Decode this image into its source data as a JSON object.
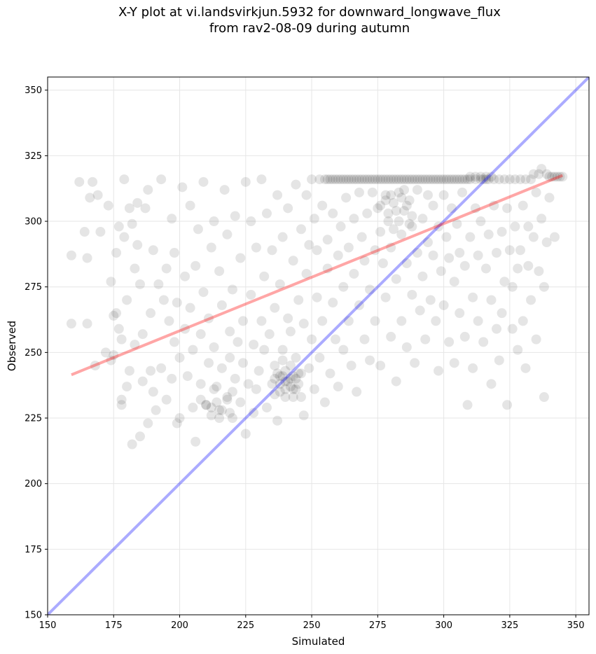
{
  "chart_data": {
    "type": "scatter",
    "title_line1": "X-Y plot at vi.landsvirkjun.5932 for downward_longwave_flux",
    "title_line2": "from rav2-08-09 during autumn",
    "xlabel": "Simulated",
    "ylabel": "Observed",
    "xlim": [
      150,
      355
    ],
    "ylim": [
      150,
      355
    ],
    "xticks": [
      150,
      175,
      200,
      225,
      250,
      275,
      300,
      325,
      350
    ],
    "yticks": [
      150,
      175,
      200,
      225,
      250,
      275,
      300,
      325,
      350
    ],
    "grid": true,
    "point_color": "#000000",
    "point_alpha": 0.1,
    "one_to_one_line": {
      "color": "#0000ff",
      "alpha": 0.33,
      "x": [
        150,
        355
      ],
      "y": [
        150,
        355
      ]
    },
    "regression_line": {
      "color": "#ff0000",
      "alpha": 0.35,
      "x": [
        159,
        345
      ],
      "y": [
        241.5,
        317.5
      ]
    },
    "points": [
      [
        159,
        261
      ],
      [
        159,
        287
      ],
      [
        162,
        315
      ],
      [
        164,
        296
      ],
      [
        165,
        286
      ],
      [
        165,
        261
      ],
      [
        166,
        309
      ],
      [
        167,
        315
      ],
      [
        168,
        245
      ],
      [
        169,
        310
      ],
      [
        170,
        296
      ],
      [
        172,
        250
      ],
      [
        173,
        306
      ],
      [
        174,
        247
      ],
      [
        174,
        277
      ],
      [
        175,
        249
      ],
      [
        175,
        264
      ],
      [
        176,
        265
      ],
      [
        176,
        288
      ],
      [
        177,
        298
      ],
      [
        177,
        259
      ],
      [
        178,
        232
      ],
      [
        178,
        230
      ],
      [
        178,
        255
      ],
      [
        179,
        294
      ],
      [
        179,
        316
      ],
      [
        180,
        237
      ],
      [
        180,
        270
      ],
      [
        181,
        243
      ],
      [
        181,
        305
      ],
      [
        182,
        299
      ],
      [
        182,
        215
      ],
      [
        183,
        282
      ],
      [
        183,
        253
      ],
      [
        184,
        307
      ],
      [
        184,
        291
      ],
      [
        185,
        218
      ],
      [
        185,
        276
      ],
      [
        186,
        239
      ],
      [
        186,
        257
      ],
      [
        187,
        305
      ],
      [
        188,
        223
      ],
      [
        188,
        312
      ],
      [
        189,
        265
      ],
      [
        189,
        243
      ],
      [
        190,
        235
      ],
      [
        190,
        289
      ],
      [
        191,
        228
      ],
      [
        192,
        276
      ],
      [
        193,
        316
      ],
      [
        193,
        244
      ],
      [
        194,
        270
      ],
      [
        195,
        232
      ],
      [
        195,
        282
      ],
      [
        196,
        262
      ],
      [
        197,
        301
      ],
      [
        197,
        240
      ],
      [
        198,
        288
      ],
      [
        198,
        254
      ],
      [
        199,
        223
      ],
      [
        199,
        269
      ],
      [
        200,
        248
      ],
      [
        200,
        225
      ],
      [
        201,
        313
      ],
      [
        202,
        279
      ],
      [
        202,
        259
      ],
      [
        203,
        241
      ],
      [
        204,
        306
      ],
      [
        204,
        267
      ],
      [
        205,
        229
      ],
      [
        205,
        251
      ],
      [
        206,
        283
      ],
      [
        206,
        216
      ],
      [
        207,
        297
      ],
      [
        208,
        257
      ],
      [
        208,
        238
      ],
      [
        209,
        315
      ],
      [
        209,
        273
      ],
      [
        210,
        230
      ],
      [
        211,
        246
      ],
      [
        211,
        263
      ],
      [
        212,
        290
      ],
      [
        212,
        226
      ],
      [
        213,
        300
      ],
      [
        213,
        252
      ],
      [
        214,
        237
      ],
      [
        215,
        281
      ],
      [
        215,
        228
      ],
      [
        216,
        268
      ],
      [
        216,
        244
      ],
      [
        217,
        312
      ],
      [
        218,
        295
      ],
      [
        218,
        232
      ],
      [
        219,
        258
      ],
      [
        219,
        248
      ],
      [
        220,
        274
      ],
      [
        220,
        225
      ],
      [
        221,
        240
      ],
      [
        221,
        302
      ],
      [
        222,
        254
      ],
      [
        223,
        286
      ],
      [
        223,
        231
      ],
      [
        224,
        262
      ],
      [
        224,
        246
      ],
      [
        225,
        315
      ],
      [
        225,
        219
      ],
      [
        226,
        238
      ],
      [
        227,
        272
      ],
      [
        227,
        300
      ],
      [
        228,
        253
      ],
      [
        228,
        227
      ],
      [
        229,
        290
      ],
      [
        229,
        236
      ],
      [
        230,
        243
      ],
      [
        231,
        262
      ],
      [
        231,
        316
      ],
      [
        232,
        279
      ],
      [
        232,
        251
      ],
      [
        233,
        303
      ],
      [
        233,
        229
      ],
      [
        234,
        257
      ],
      [
        235,
        238
      ],
      [
        235,
        289
      ],
      [
        236,
        267
      ],
      [
        236,
        245
      ],
      [
        237,
        310
      ],
      [
        237,
        224
      ],
      [
        238,
        241
      ],
      [
        238,
        276
      ],
      [
        239,
        251
      ],
      [
        239,
        294
      ],
      [
        240,
        239
      ],
      [
        240,
        233
      ],
      [
        241,
        305
      ],
      [
        241,
        263
      ],
      [
        242,
        240
      ],
      [
        242,
        258
      ],
      [
        243,
        285
      ],
      [
        243,
        236
      ],
      [
        244,
        314
      ],
      [
        244,
        248
      ],
      [
        245,
        242
      ],
      [
        245,
        270
      ],
      [
        246,
        233
      ],
      [
        246,
        297
      ],
      [
        247,
        261
      ],
      [
        247,
        226
      ],
      [
        248,
        280
      ],
      [
        248,
        310
      ],
      [
        249,
        244
      ],
      [
        249,
        291
      ],
      [
        250,
        255
      ],
      [
        250,
        316
      ],
      [
        251,
        301
      ],
      [
        251,
        236
      ],
      [
        252,
        271
      ],
      [
        252,
        289
      ],
      [
        253,
        316
      ],
      [
        253,
        248
      ],
      [
        254,
        262
      ],
      [
        254,
        306
      ],
      [
        255,
        316
      ],
      [
        255,
        231
      ],
      [
        256,
        282
      ],
      [
        256,
        293
      ],
      [
        257,
        316
      ],
      [
        257,
        242
      ],
      [
        258,
        269
      ],
      [
        258,
        303
      ],
      [
        259,
        316
      ],
      [
        259,
        255
      ],
      [
        260,
        287
      ],
      [
        260,
        237
      ],
      [
        261,
        316
      ],
      [
        261,
        298
      ],
      [
        262,
        275
      ],
      [
        262,
        251
      ],
      [
        263,
        316
      ],
      [
        263,
        309
      ],
      [
        264,
        262
      ],
      [
        264,
        290
      ],
      [
        265,
        316
      ],
      [
        265,
        245
      ],
      [
        266,
        301
      ],
      [
        266,
        280
      ],
      [
        267,
        316
      ],
      [
        267,
        235
      ],
      [
        268,
        268
      ],
      [
        268,
        311
      ],
      [
        269,
        316
      ],
      [
        269,
        294
      ],
      [
        270,
        255
      ],
      [
        270,
        285
      ],
      [
        271,
        316
      ],
      [
        271,
        303
      ],
      [
        272,
        274
      ],
      [
        272,
        247
      ],
      [
        273,
        316
      ],
      [
        273,
        311
      ],
      [
        274,
        289
      ],
      [
        274,
        262
      ],
      [
        275,
        316
      ],
      [
        275,
        305
      ],
      [
        276,
        296
      ],
      [
        276,
        245
      ],
      [
        277,
        316
      ],
      [
        277,
        284
      ],
      [
        278,
        310
      ],
      [
        278,
        271
      ],
      [
        279,
        316
      ],
      [
        279,
        300
      ],
      [
        280,
        256
      ],
      [
        280,
        290
      ],
      [
        281,
        316
      ],
      [
        281,
        307
      ],
      [
        282,
        278
      ],
      [
        282,
        239
      ],
      [
        283,
        316
      ],
      [
        283,
        311
      ],
      [
        284,
        295
      ],
      [
        284,
        262
      ],
      [
        285,
        316
      ],
      [
        285,
        304
      ],
      [
        286,
        284
      ],
      [
        286,
        252
      ],
      [
        287,
        316
      ],
      [
        287,
        308
      ],
      [
        288,
        272
      ],
      [
        288,
        298
      ],
      [
        289,
        316
      ],
      [
        289,
        246
      ],
      [
        290,
        288
      ],
      [
        290,
        312
      ],
      [
        291,
        316
      ],
      [
        291,
        266
      ],
      [
        292,
        301
      ],
      [
        292,
        279
      ],
      [
        293,
        316
      ],
      [
        293,
        255
      ],
      [
        294,
        292
      ],
      [
        294,
        310
      ],
      [
        295,
        316
      ],
      [
        295,
        270
      ],
      [
        296,
        306
      ],
      [
        296,
        287
      ],
      [
        297,
        316
      ],
      [
        297,
        262
      ],
      [
        298,
        298
      ],
      [
        298,
        243
      ],
      [
        299,
        316
      ],
      [
        299,
        281
      ],
      [
        300,
        310
      ],
      [
        300,
        268
      ],
      [
        301,
        316
      ],
      [
        301,
        294
      ],
      [
        302,
        254
      ],
      [
        302,
        286
      ],
      [
        303,
        316
      ],
      [
        303,
        305
      ],
      [
        304,
        277
      ],
      [
        304,
        246
      ],
      [
        305,
        316
      ],
      [
        305,
        299
      ],
      [
        306,
        265
      ],
      [
        306,
        288
      ],
      [
        307,
        316
      ],
      [
        307,
        311
      ],
      [
        308,
        283
      ],
      [
        308,
        256
      ],
      [
        309,
        316
      ],
      [
        309,
        230
      ],
      [
        310,
        316
      ],
      [
        310,
        294
      ],
      [
        311,
        271
      ],
      [
        311,
        244
      ],
      [
        312,
        316
      ],
      [
        312,
        305
      ],
      [
        313,
        287
      ],
      [
        313,
        262
      ],
      [
        314,
        316
      ],
      [
        314,
        300
      ],
      [
        315,
        316
      ],
      [
        315,
        254
      ],
      [
        316,
        316
      ],
      [
        316,
        282
      ],
      [
        317,
        316
      ],
      [
        317,
        295
      ],
      [
        318,
        238
      ],
      [
        318,
        270
      ],
      [
        319,
        316
      ],
      [
        319,
        306
      ],
      [
        320,
        288
      ],
      [
        320,
        259
      ],
      [
        321,
        316
      ],
      [
        321,
        247
      ],
      [
        322,
        296
      ],
      [
        322,
        265
      ],
      [
        323,
        316
      ],
      [
        323,
        277
      ],
      [
        324,
        230
      ],
      [
        324,
        305
      ],
      [
        325,
        316
      ],
      [
        325,
        289
      ],
      [
        326,
        259
      ],
      [
        326,
        275
      ],
      [
        327,
        316
      ],
      [
        327,
        298
      ],
      [
        328,
        251
      ],
      [
        328,
        282
      ],
      [
        329,
        316
      ],
      [
        329,
        289
      ],
      [
        330,
        262
      ],
      [
        330,
        306
      ],
      [
        331,
        316
      ],
      [
        331,
        244
      ],
      [
        332,
        298
      ],
      [
        332,
        283
      ],
      [
        333,
        316
      ],
      [
        333,
        270
      ],
      [
        334,
        318
      ],
      [
        334,
        294
      ],
      [
        335,
        255
      ],
      [
        335,
        311
      ],
      [
        336,
        318
      ],
      [
        336,
        281
      ],
      [
        337,
        320
      ],
      [
        337,
        301
      ],
      [
        338,
        233
      ],
      [
        338,
        275
      ],
      [
        339,
        318
      ],
      [
        339,
        292
      ],
      [
        340,
        317
      ],
      [
        340,
        309
      ],
      [
        341,
        317
      ],
      [
        342,
        317
      ],
      [
        342,
        294
      ],
      [
        343,
        317
      ],
      [
        344,
        317
      ],
      [
        345,
        317
      ],
      [
        256,
        316
      ],
      [
        258,
        316
      ],
      [
        260,
        316
      ],
      [
        262,
        316
      ],
      [
        264,
        316
      ],
      [
        266,
        316
      ],
      [
        268,
        316
      ],
      [
        270,
        316
      ],
      [
        272,
        316
      ],
      [
        274,
        316
      ],
      [
        276,
        316
      ],
      [
        278,
        316
      ],
      [
        280,
        316
      ],
      [
        282,
        316
      ],
      [
        284,
        316
      ],
      [
        286,
        316
      ],
      [
        288,
        316
      ],
      [
        290,
        316
      ],
      [
        292,
        316
      ],
      [
        294,
        316
      ],
      [
        296,
        316
      ],
      [
        298,
        316
      ],
      [
        300,
        316
      ],
      [
        302,
        316
      ],
      [
        304,
        316
      ],
      [
        306,
        316
      ],
      [
        308,
        316
      ],
      [
        310,
        317
      ],
      [
        312,
        317
      ],
      [
        314,
        317
      ],
      [
        316,
        317
      ],
      [
        318,
        317
      ],
      [
        236,
        240
      ],
      [
        237,
        242
      ],
      [
        238,
        238
      ],
      [
        239,
        241
      ],
      [
        240,
        243
      ],
      [
        241,
        239
      ],
      [
        242,
        237
      ],
      [
        243,
        241
      ],
      [
        244,
        240
      ],
      [
        245,
        238
      ],
      [
        240,
        236
      ],
      [
        238,
        235
      ],
      [
        242,
        245
      ],
      [
        244,
        236
      ],
      [
        236,
        234
      ],
      [
        246,
        242
      ],
      [
        239,
        247
      ],
      [
        243,
        233
      ],
      [
        276,
        306
      ],
      [
        278,
        308
      ],
      [
        280,
        310
      ],
      [
        282,
        304
      ],
      [
        284,
        309
      ],
      [
        286,
        306
      ],
      [
        288,
        302
      ],
      [
        279,
        303
      ],
      [
        283,
        300
      ],
      [
        285,
        312
      ],
      [
        281,
        297
      ],
      [
        287,
        299
      ],
      [
        210,
        230
      ],
      [
        212,
        229
      ],
      [
        214,
        231
      ],
      [
        216,
        228
      ],
      [
        218,
        233
      ],
      [
        208,
        232
      ],
      [
        220,
        235
      ],
      [
        215,
        225
      ],
      [
        213,
        236
      ],
      [
        219,
        227
      ]
    ]
  }
}
